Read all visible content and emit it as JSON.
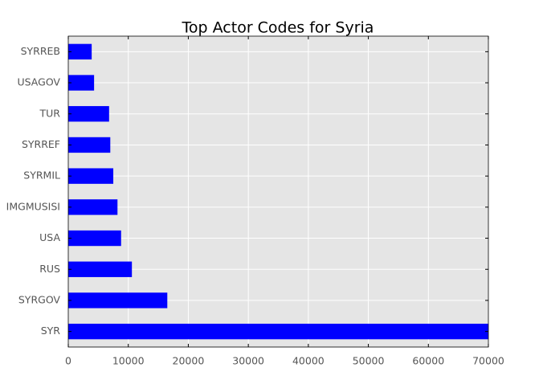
{
  "chart_data": {
    "type": "barh",
    "title": "Top Actor Codes for Syria",
    "categories": [
      "SYR",
      "SYRGOV",
      "RUS",
      "USA",
      "IMGMUSISI",
      "SYRMIL",
      "SYRREF",
      "TUR",
      "USAGOV",
      "SYRREB"
    ],
    "values": [
      70000,
      16500,
      10600,
      8800,
      8200,
      7500,
      7000,
      6800,
      4300,
      3900
    ],
    "color": "#0000ff",
    "xlim": [
      0,
      70000
    ],
    "xticks": [
      0,
      10000,
      20000,
      30000,
      40000,
      50000,
      60000,
      70000
    ],
    "grid": true
  }
}
